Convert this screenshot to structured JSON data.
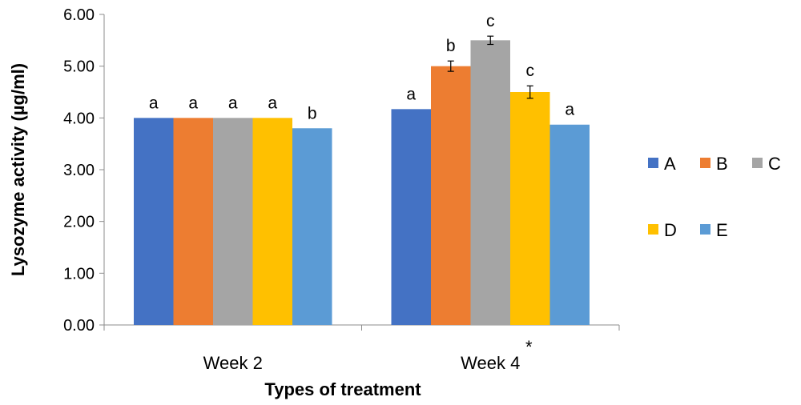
{
  "chart_data": {
    "type": "bar",
    "categories": [
      "Week 2",
      "Week 4"
    ],
    "category_marks": [
      "",
      "*"
    ],
    "series": [
      {
        "name": "A",
        "color": "#4472C4",
        "values": [
          4.0,
          4.17
        ],
        "errors": [
          0,
          0
        ],
        "sig": [
          "a",
          "a"
        ]
      },
      {
        "name": "B",
        "color": "#ED7D31",
        "values": [
          4.0,
          5.0
        ],
        "errors": [
          0,
          0.1
        ],
        "sig": [
          "a",
          "b"
        ]
      },
      {
        "name": "C",
        "color": "#A5A5A5",
        "values": [
          4.0,
          5.5
        ],
        "errors": [
          0,
          0.08
        ],
        "sig": [
          "a",
          "c"
        ]
      },
      {
        "name": "D",
        "color": "#FFC000",
        "values": [
          4.0,
          4.5
        ],
        "errors": [
          0,
          0.12
        ],
        "sig": [
          "a",
          "c"
        ]
      },
      {
        "name": "E",
        "color": "#5B9BD5",
        "values": [
          3.8,
          3.87
        ],
        "errors": [
          0,
          0
        ],
        "sig": [
          "b",
          "a"
        ]
      }
    ],
    "xlabel": "Types of treatment",
    "ylabel": "Lysozyme activity (µg/ml)",
    "ylim": [
      0,
      6
    ],
    "yticks": [
      "0.00",
      "1.00",
      "2.00",
      "3.00",
      "4.00",
      "5.00",
      "6.00"
    ],
    "grid": false,
    "legend": "right"
  }
}
